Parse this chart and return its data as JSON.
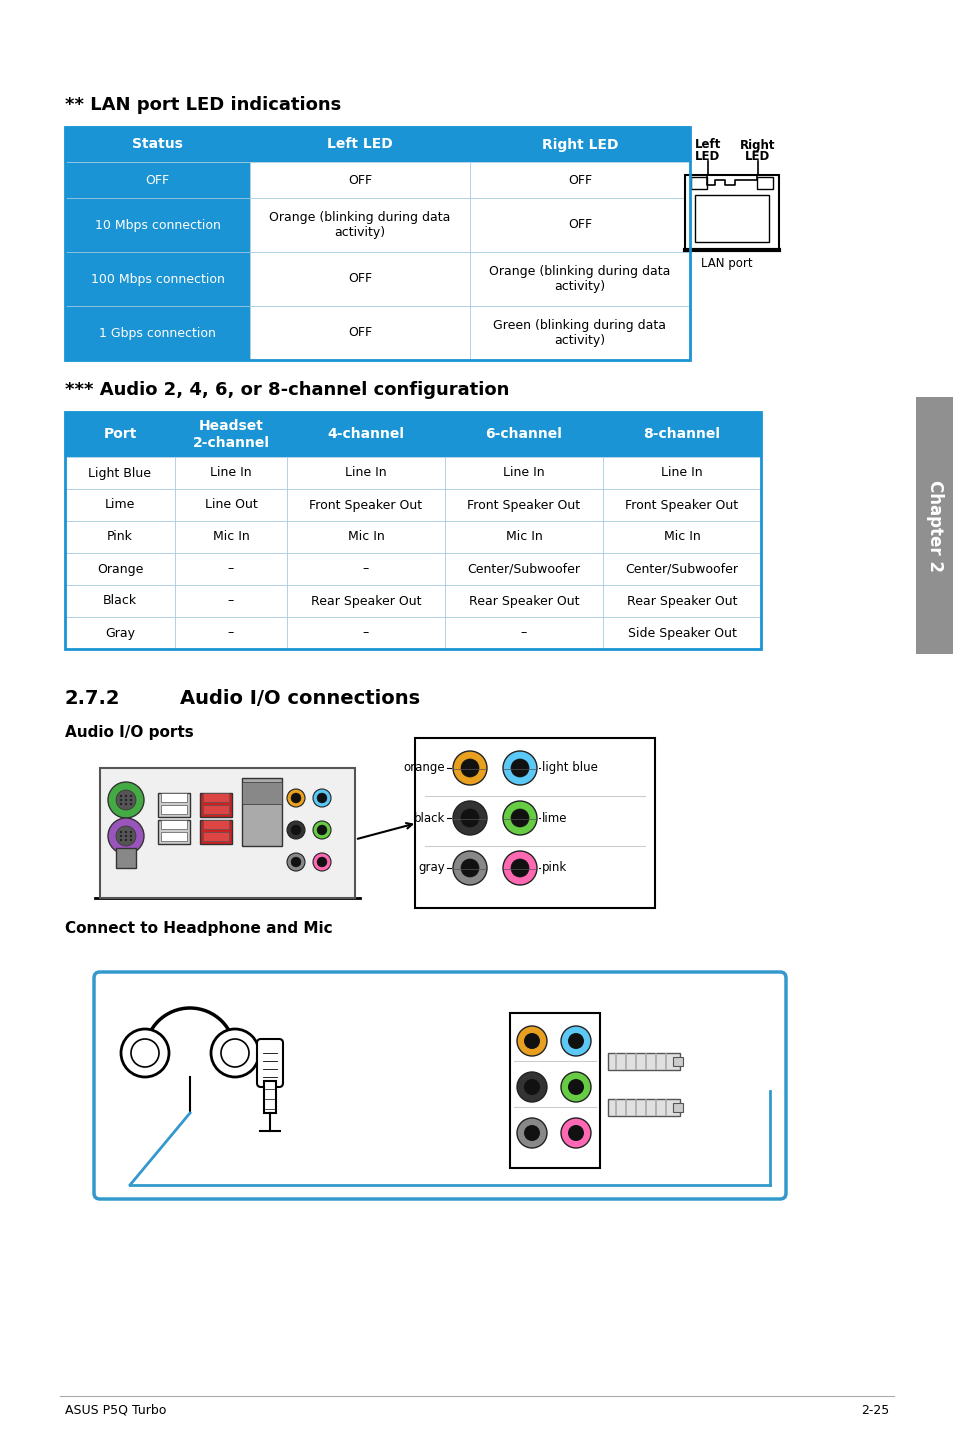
{
  "page_bg": "#ffffff",
  "lan_title": "** LAN port LED indications",
  "lan_headers": [
    "Status",
    "Left LED",
    "Right LED"
  ],
  "lan_header_bg": "#1a94d4",
  "lan_rows": [
    [
      "OFF",
      "OFF",
      "OFF"
    ],
    [
      "10 Mbps connection",
      "Orange (blinking during data\nactivity)",
      "OFF"
    ],
    [
      "100 Mbps connection",
      "OFF",
      "Orange (blinking during data\nactivity)"
    ],
    [
      "1 Gbps connection",
      "OFF",
      "Green (blinking during data\nactivity)"
    ]
  ],
  "audio_config_title": "*** Audio 2, 4, 6, or 8-channel configuration",
  "audio_headers": [
    "Port",
    "Headset\n2-channel",
    "4-channel",
    "6-channel",
    "8-channel"
  ],
  "audio_rows": [
    [
      "Light Blue",
      "Line In",
      "Line In",
      "Line In",
      "Line In"
    ],
    [
      "Lime",
      "Line Out",
      "Front Speaker Out",
      "Front Speaker Out",
      "Front Speaker Out"
    ],
    [
      "Pink",
      "Mic In",
      "Mic In",
      "Mic In",
      "Mic In"
    ],
    [
      "Orange",
      "–",
      "–",
      "Center/Subwoofer",
      "Center/Subwoofer"
    ],
    [
      "Black",
      "–",
      "Rear Speaker Out",
      "Rear Speaker Out",
      "Rear Speaker Out"
    ],
    [
      "Gray",
      "–",
      "–",
      "–",
      "Side Speaker Out"
    ]
  ],
  "section_272_title": "2.7.2",
  "section_272_sub": "Audio I/O connections",
  "audio_io_ports_title": "Audio I/O ports",
  "connect_headphone_title": "Connect to Headphone and Mic",
  "footer_left": "ASUS P5Q Turbo",
  "footer_right": "2-25",
  "chapter_label": "Chapter 2",
  "blue_color": "#1a94d4",
  "port_colors_left": [
    "#e8a020",
    "#333333",
    "#888888"
  ],
  "port_colors_right": [
    "#5bc8f5",
    "#66cc44",
    "#ff69b4"
  ],
  "port_labels_left": [
    "orange",
    "black",
    "gray"
  ],
  "port_labels_right": [
    "light blue",
    "lime",
    "pink"
  ]
}
